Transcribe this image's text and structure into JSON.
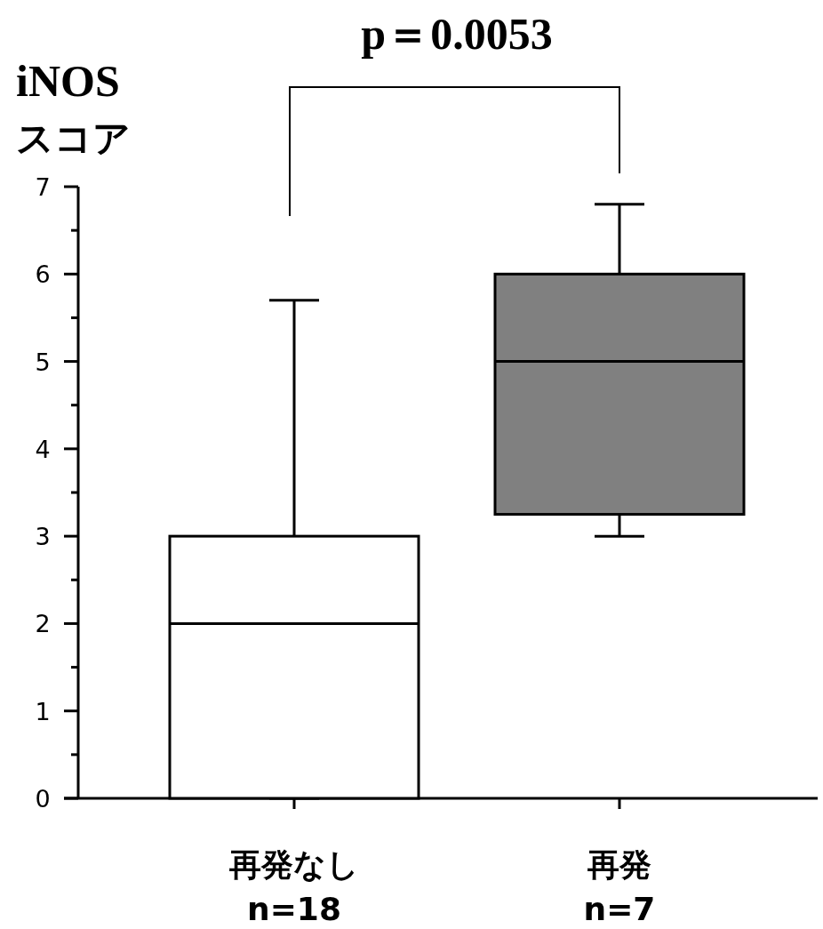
{
  "chart_data": {
    "type": "box",
    "ylabel": "iNOS\nスコア",
    "categories": [
      "再発なし\nn=18",
      "再発\nn=7"
    ],
    "boxes": [
      {
        "low": 0,
        "q1": 0,
        "median": 2,
        "q3": 3,
        "high": 5.7
      },
      {
        "low": 3,
        "q1": 3.25,
        "median": 5,
        "q3": 6,
        "high": 6.8
      }
    ],
    "colors": [
      "#ffffff",
      "#808080"
    ],
    "ylim": [
      0,
      7
    ],
    "yticks": [
      0,
      1,
      2,
      3,
      4,
      5,
      6,
      7
    ],
    "annotations": [
      "p＝0.0053"
    ]
  }
}
